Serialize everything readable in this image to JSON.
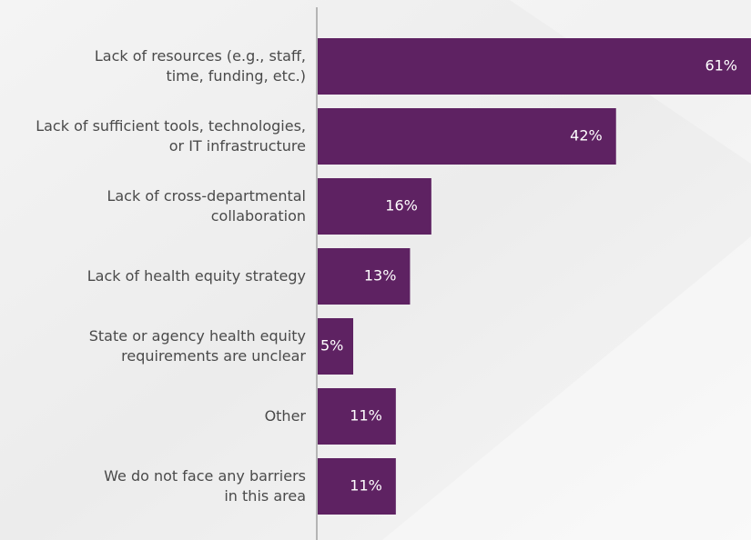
{
  "chart_data": {
    "type": "barh",
    "categories": [
      "Lack of  resources (e.g., staff,\ntime, funding, etc.)",
      "Lack of sufficient tools, technologies,\nor IT infrastructure",
      "Lack of cross-departmental\ncollaboration",
      "Lack of health equity strategy",
      "State or agency health equity\nrequirements are unclear",
      "Other",
      "We do not face any barriers\nin this area"
    ],
    "values": [
      61,
      42,
      16,
      13,
      5,
      11,
      11
    ],
    "value_labels": [
      "61%",
      "42%",
      "16%",
      "13%",
      "5%",
      "11%",
      "11%"
    ],
    "color": "#5e2262"
  }
}
